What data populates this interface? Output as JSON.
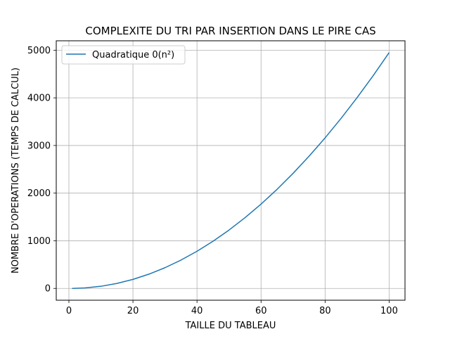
{
  "chart_data": {
    "type": "line",
    "title": "COMPLEXITE DU TRI PAR INSERTION DANS LE PIRE CAS",
    "xlabel": "TAILLE DU TABLEAU",
    "ylabel": "NOMBRE D'OPERATIONS (TEMPS DE CALCUL)",
    "xlim": [
      -3.95,
      104.95
    ],
    "ylim": [
      -247.5,
      5197.5
    ],
    "xticks": [
      0,
      20,
      40,
      60,
      80,
      100
    ],
    "yticks": [
      0,
      1000,
      2000,
      3000,
      4000,
      5000
    ],
    "grid": true,
    "legend": {
      "placement": "upper-left"
    },
    "series": [
      {
        "name": "Quadratique 0(n²)",
        "color": "#1f77b4",
        "x": [
          1,
          5,
          10,
          15,
          20,
          25,
          30,
          35,
          40,
          45,
          50,
          55,
          60,
          65,
          70,
          75,
          80,
          85,
          90,
          95,
          100
        ],
        "y": [
          0,
          10,
          45,
          105,
          190,
          300,
          435,
          595,
          780,
          990,
          1225,
          1485,
          1770,
          2080,
          2415,
          2775,
          3160,
          3570,
          4005,
          4465,
          4950
        ]
      }
    ]
  }
}
